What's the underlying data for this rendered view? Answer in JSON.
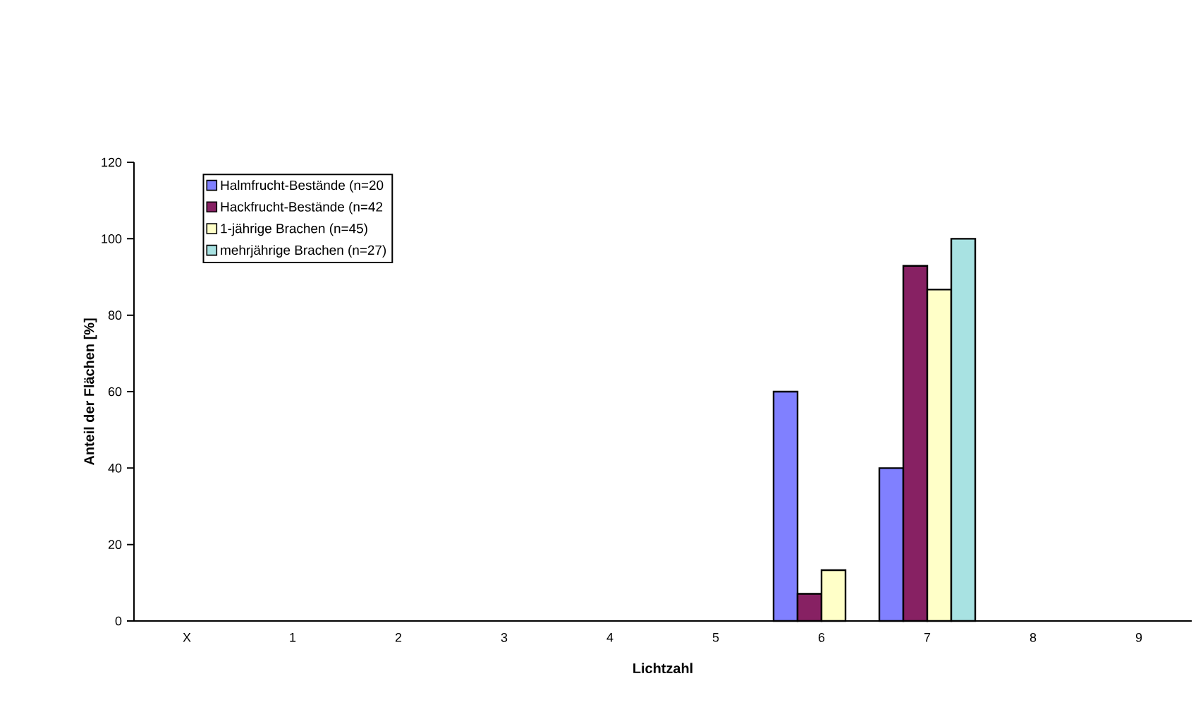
{
  "chart_data": {
    "type": "bar",
    "xlabel": "Lichtzahl",
    "ylabel": "Anteil der Flächen [%]",
    "categories": [
      "X",
      "1",
      "2",
      "3",
      "4",
      "5",
      "6",
      "7",
      "8",
      "9"
    ],
    "series": [
      {
        "name": "Halmfrucht-Bestände (n=20",
        "color": "#8080ff",
        "values": [
          null,
          null,
          null,
          null,
          null,
          null,
          60,
          40,
          null,
          null
        ]
      },
      {
        "name": "Hackfrucht-Bestände (n=42",
        "color": "#872163",
        "values": [
          null,
          null,
          null,
          null,
          null,
          null,
          7.1,
          92.9,
          null,
          null
        ]
      },
      {
        "name": "1-jährige Brachen (n=45)",
        "color": "#ffffc8",
        "values": [
          null,
          null,
          null,
          null,
          null,
          null,
          13.3,
          86.7,
          null,
          null
        ]
      },
      {
        "name": "mehrjährige Brachen (n=27)",
        "color": "#a8e2e2",
        "values": [
          null,
          null,
          null,
          null,
          null,
          null,
          null,
          100,
          null,
          null
        ]
      }
    ],
    "ylim": [
      0,
      120
    ],
    "yticks": [
      0,
      20,
      40,
      60,
      80,
      100,
      120
    ],
    "grid": false,
    "legend": "top left"
  }
}
